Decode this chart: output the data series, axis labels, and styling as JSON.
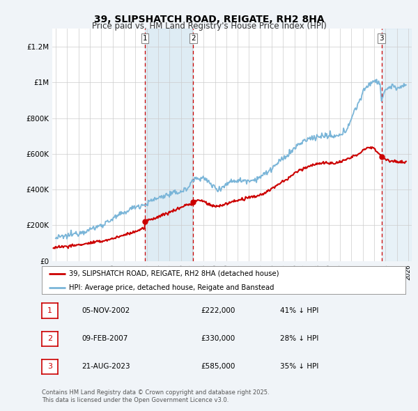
{
  "title": "39, SLIPSHATCH ROAD, REIGATE, RH2 8HA",
  "subtitle": "Price paid vs. HM Land Registry's House Price Index (HPI)",
  "hpi_color": "#7ab5d8",
  "price_color": "#cc0000",
  "sale1_date": 2002.85,
  "sale1_price": 222000,
  "sale2_date": 2007.1,
  "sale2_price": 330000,
  "sale3_date": 2023.64,
  "sale3_price": 585000,
  "ylim": [
    0,
    1300000
  ],
  "xlim": [
    1994.7,
    2026.3
  ],
  "yticks": [
    0,
    200000,
    400000,
    600000,
    800000,
    1000000,
    1200000
  ],
  "ytick_labels": [
    "£0",
    "£200K",
    "£400K",
    "£600K",
    "£800K",
    "£1M",
    "£1.2M"
  ],
  "xticks": [
    1995,
    1996,
    1997,
    1998,
    1999,
    2000,
    2001,
    2002,
    2003,
    2004,
    2005,
    2006,
    2007,
    2008,
    2009,
    2010,
    2011,
    2012,
    2013,
    2014,
    2015,
    2016,
    2017,
    2018,
    2019,
    2020,
    2021,
    2022,
    2023,
    2024,
    2025,
    2026
  ],
  "legend_entries": [
    "39, SLIPSHATCH ROAD, REIGATE, RH2 8HA (detached house)",
    "HPI: Average price, detached house, Reigate and Banstead"
  ],
  "table_rows": [
    [
      "1",
      "05-NOV-2002",
      "£222,000",
      "41% ↓ HPI"
    ],
    [
      "2",
      "09-FEB-2007",
      "£330,000",
      "28% ↓ HPI"
    ],
    [
      "3",
      "21-AUG-2023",
      "£585,000",
      "35% ↓ HPI"
    ]
  ],
  "footnote": "Contains HM Land Registry data © Crown copyright and database right 2025.\nThis data is licensed under the Open Government Licence v3.0.",
  "bg_color": "#f0f4f8",
  "plot_bg_color": "#ffffff",
  "shade_blue": "#d0e4f0",
  "shade_right": "#d0e4f0",
  "grid_color": "#cccccc"
}
